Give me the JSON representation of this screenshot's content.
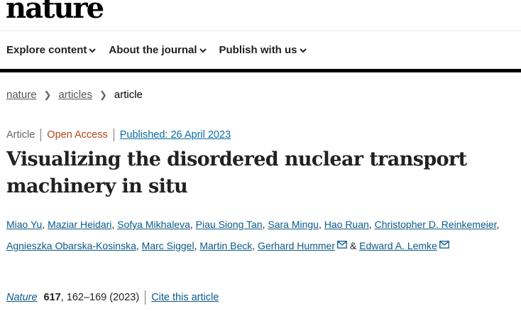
{
  "site": {
    "logo": "nature"
  },
  "nav": {
    "items": [
      {
        "label": "Explore content"
      },
      {
        "label": "About the journal"
      },
      {
        "label": "Publish with us"
      }
    ]
  },
  "breadcrumb": {
    "items": [
      "nature",
      "articles"
    ],
    "current": "article"
  },
  "meta": {
    "type": "Article",
    "access": "Open Access",
    "published": "Published: 26 April 2023"
  },
  "title": "Visualizing the disordered nuclear transport machinery in situ",
  "authors": [
    {
      "name": "Miao Yu",
      "email": false
    },
    {
      "name": "Maziar Heidari",
      "email": false
    },
    {
      "name": "Sofya Mikhaleva",
      "email": false
    },
    {
      "name": "Piau Siong Tan",
      "email": false
    },
    {
      "name": "Sara Mingu",
      "email": false
    },
    {
      "name": "Hao Ruan",
      "email": false
    },
    {
      "name": "Christopher D. Reinkemeier",
      "email": false
    },
    {
      "name": "Agnieszka Obarska-Kosinska",
      "email": false
    },
    {
      "name": "Marc Siggel",
      "email": false
    },
    {
      "name": "Martin Beck",
      "email": false
    },
    {
      "name": "Gerhard Hummer",
      "email": true
    },
    {
      "name": "Edward A. Lemke",
      "email": true
    }
  ],
  "authors_conjunction": "&",
  "citation": {
    "journal": "Nature",
    "volume": "617",
    "pages": ", 162–169 (2023)",
    "cite_link": "Cite this article"
  },
  "colors": {
    "link": "#0a5a8a",
    "open_access": "#b5421a"
  }
}
